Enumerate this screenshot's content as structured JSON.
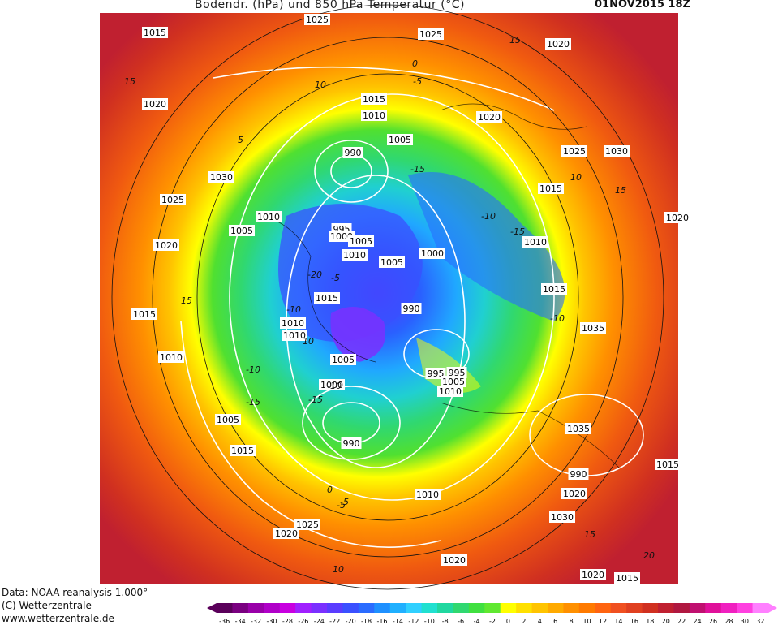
{
  "header": {
    "title": "Bodendr. (hPa)  und 850 hPa Temperatur (°C)",
    "date": "01NOV2015 18Z"
  },
  "footer": {
    "line1": "Data: NOAA reanalysis 1.000°",
    "line2": "(C) Wetterzentrale",
    "line3": "www.wetterzentrale.de"
  },
  "legend": {
    "ticks": [
      "-36",
      "-34",
      "-32",
      "-30",
      "-28",
      "-26",
      "-24",
      "-22",
      "-20",
      "-18",
      "-16",
      "-14",
      "-12",
      "-10",
      "-8",
      "-6",
      "-4",
      "-2",
      "0",
      "2",
      "4",
      "6",
      "8",
      "10",
      "12",
      "14",
      "16",
      "18",
      "20",
      "22",
      "24",
      "26",
      "28",
      "30",
      "32"
    ],
    "colors": [
      "#5a005a",
      "#7a0080",
      "#9900a8",
      "#b000c8",
      "#c800e0",
      "#a020ff",
      "#7a30ff",
      "#5a3cff",
      "#3a50ff",
      "#2a6cff",
      "#1e90ff",
      "#20b0ff",
      "#30d0ff",
      "#20e0d0",
      "#20d8a0",
      "#30d870",
      "#40e040",
      "#60e830",
      "#ffff00",
      "#ffe000",
      "#ffc400",
      "#ffaa00",
      "#ff9000",
      "#ff7a00",
      "#ff6410",
      "#f05020",
      "#e04020",
      "#d03020",
      "#c02030",
      "#b01840",
      "#c01070",
      "#e0109a",
      "#f020c0",
      "#ff40e0",
      "#ff80ff"
    ]
  },
  "pressure_labels": [
    "1025",
    "1015",
    "1025",
    "1020",
    "1020",
    "1030",
    "1025",
    "1010",
    "1005",
    "1020",
    "1015",
    "990",
    "1015",
    "1010",
    "1005",
    "995",
    "1000",
    "1005",
    "1010",
    "1005",
    "1000",
    "1015",
    "1020",
    "1025",
    "1030",
    "1015",
    "1010",
    "1015",
    "990",
    "1035",
    "1010",
    "1005",
    "995",
    "1000",
    "990",
    "995",
    "1005",
    "1010",
    "1010",
    "1005",
    "1035",
    "1015",
    "990",
    "1010",
    "1020",
    "1030",
    "1025",
    "1020",
    "1020",
    "1020",
    "1015",
    "1015",
    "1010",
    "1020"
  ],
  "temperature_labels": [
    "15",
    "15",
    "10",
    "5",
    "0",
    "-5",
    "-5",
    "-10",
    "-15",
    "-15",
    "-20",
    "-10",
    "-15",
    "-10",
    "-10",
    "-15",
    "-10",
    "-5",
    "0",
    "-5",
    "10",
    "15",
    "10",
    "15",
    "20",
    "10",
    "15"
  ]
}
